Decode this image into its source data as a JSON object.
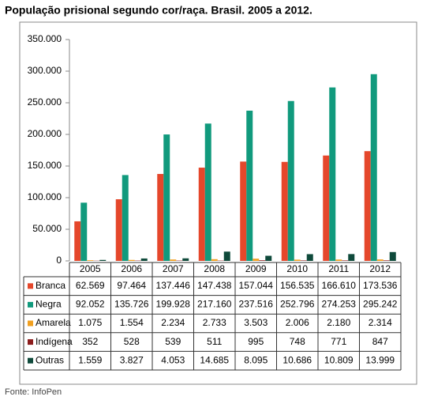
{
  "chart_data": {
    "type": "bar",
    "title": "População prisional segundo cor/raça. Brasil. 2005 a 2012.",
    "source": "Fonte: InfoPen",
    "categories": [
      "2005",
      "2006",
      "2007",
      "2008",
      "2009",
      "2010",
      "2011",
      "2012"
    ],
    "series": [
      {
        "name": "Branca",
        "color": "#e5472b",
        "values": [
          62569,
          97464,
          137446,
          147438,
          157044,
          156535,
          166610,
          173536
        ],
        "value_labels": [
          "62.569",
          "97.464",
          "137.446",
          "147.438",
          "157.044",
          "156.535",
          "166.610",
          "173.536"
        ]
      },
      {
        "name": "Negra",
        "color": "#119a7d",
        "values": [
          92052,
          135726,
          199928,
          217160,
          237516,
          252796,
          274253,
          295242
        ],
        "value_labels": [
          "92.052",
          "135.726",
          "199.928",
          "217.160",
          "237.516",
          "252.796",
          "274.253",
          "295.242"
        ]
      },
      {
        "name": "Amarela",
        "color": "#f1a020",
        "values": [
          1075,
          1554,
          2234,
          2733,
          3503,
          2006,
          2180,
          2314
        ],
        "value_labels": [
          "1.075",
          "1.554",
          "2.234",
          "2.733",
          "3.503",
          "2.006",
          "2.180",
          "2.314"
        ]
      },
      {
        "name": "Indígena",
        "color": "#8c1c1c",
        "values": [
          352,
          528,
          539,
          511,
          995,
          748,
          771,
          847
        ]
      },
      {
        "name": "Outras",
        "color": "#0f4a3b",
        "values": [
          1559,
          3827,
          4053,
          14685,
          8095,
          10686,
          10809,
          13999
        ],
        "value_labels": [
          "1.559",
          "3.827",
          "4.053",
          "14.685",
          "8.095",
          "10.686",
          "10.809",
          "13.999"
        ]
      }
    ],
    "ylim": [
      0,
      350000
    ],
    "yticks": [
      {
        "value": 0,
        "label": "0"
      },
      {
        "value": 50000,
        "label": "50.000"
      },
      {
        "value": 100000,
        "label": "100.000"
      },
      {
        "value": 150000,
        "label": "150.000"
      },
      {
        "value": 200000,
        "label": "200.000"
      },
      {
        "value": 250000,
        "label": "250.000"
      },
      {
        "value": 300000,
        "label": "300.000"
      },
      {
        "value": 350000,
        "label": "350.000"
      }
    ],
    "grid": false
  }
}
